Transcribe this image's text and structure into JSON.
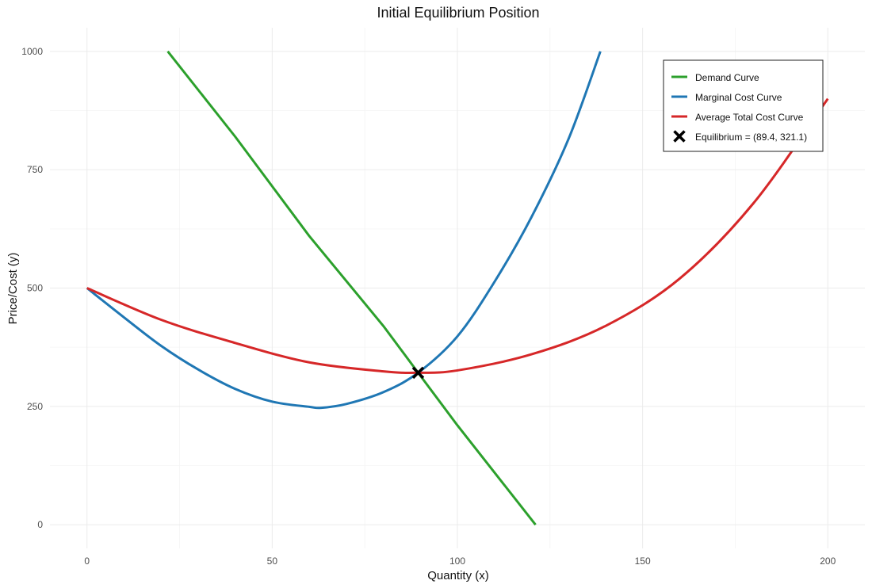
{
  "chart_data": {
    "type": "line",
    "title": "Initial Equilibrium Position",
    "xlabel": "Quantity (x)",
    "ylabel": "Price/Cost (y)",
    "xlim": [
      -10,
      210
    ],
    "ylim": [
      -50,
      1050
    ],
    "x_ticks": [
      0,
      50,
      100,
      150,
      200
    ],
    "y_ticks": [
      0,
      250,
      500,
      750,
      1000
    ],
    "x_tick_labels": [
      "0",
      "50",
      "100",
      "150",
      "200"
    ],
    "y_tick_labels": [
      "0",
      "250",
      "500",
      "750",
      "1000"
    ],
    "grid": true,
    "legend_position": "top-right",
    "series": [
      {
        "name": "Demand Curve",
        "color": "#2ca02c",
        "x": [
          21.8,
          40,
          60,
          80,
          89.4,
          100,
          121.1
        ],
        "y": [
          1000,
          820,
          610,
          420,
          321.1,
          210,
          0
        ]
      },
      {
        "name": "Marginal Cost Curve",
        "color": "#1f77b4",
        "x": [
          0,
          10,
          20,
          30,
          40,
          50,
          60,
          63.3,
          70,
          80,
          89.4,
          100,
          110,
          120,
          130,
          138.6
        ],
        "y": [
          500,
          438,
          378,
          328,
          287,
          260,
          249,
          247,
          255,
          280,
          321.1,
          398,
          513,
          650,
          815,
          1000
        ]
      },
      {
        "name": "Average Total Cost Curve",
        "color": "#d62728",
        "x": [
          0,
          20,
          40,
          60,
          80,
          89.4,
          100,
          120,
          140,
          160,
          180,
          200
        ],
        "y": [
          500,
          433,
          384,
          343,
          324,
          321.1,
          326,
          360,
          420,
          520,
          680,
          900
        ]
      }
    ],
    "equilibrium": {
      "label": "Equilibrium = (89.4, 321.1)",
      "x": 89.4,
      "y": 321.1,
      "color": "#000000"
    }
  }
}
